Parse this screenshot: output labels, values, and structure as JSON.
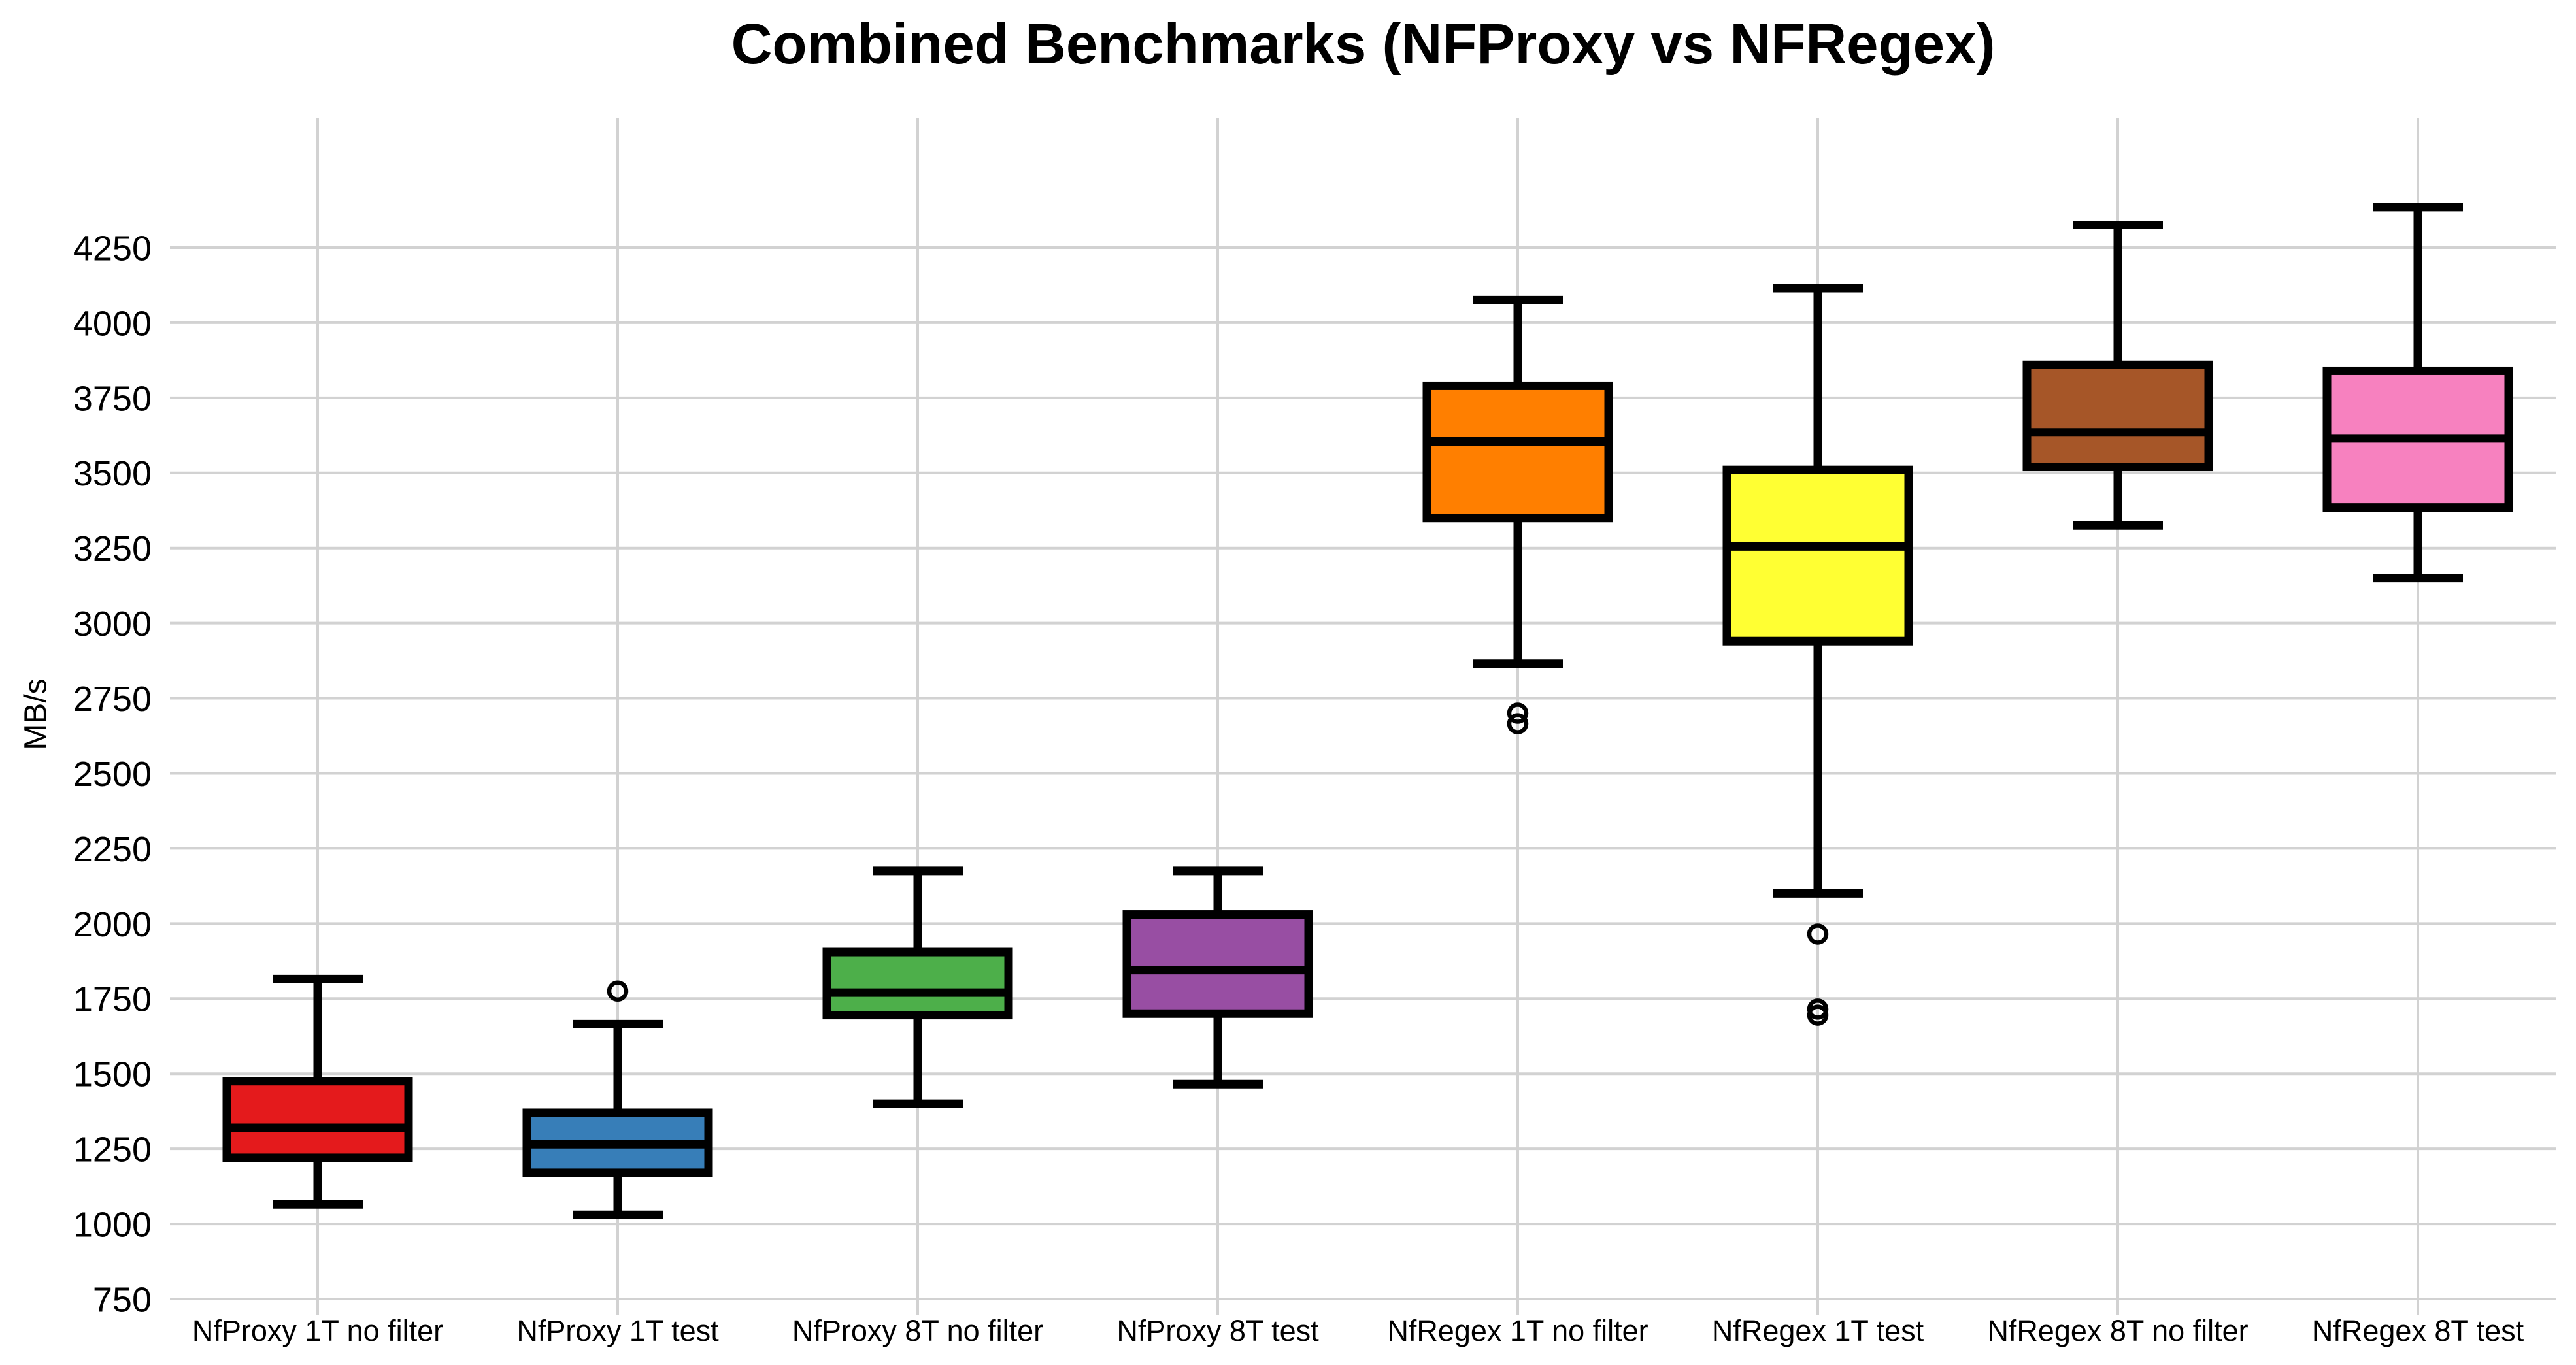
{
  "page": {
    "title": "Combined Benchmarks (NFProxy vs NFRegex)"
  },
  "chart_data": {
    "type": "box",
    "title": "Combined Benchmarks (NFProxy vs NFRegex)",
    "xlabel": "",
    "ylabel": "MB/s",
    "y_ticks": [
      750,
      1000,
      1250,
      1500,
      1750,
      2000,
      2250,
      2500,
      2750,
      3000,
      3250,
      3500,
      3750,
      4000,
      4250
    ],
    "ylim": [
      750,
      4450
    ],
    "grid": true,
    "gridline_color": "#d2d2d2",
    "box_edge_color": "#000000",
    "background_color": "#ffffff",
    "legend": "none",
    "categories": [
      "NfProxy 1T no filter",
      "NfProxy 1T test",
      "NfProxy 8T no filter",
      "NfProxy 8T test",
      "NfRegex 1T no filter",
      "NfRegex 1T test",
      "NfRegex 8T no filter",
      "NfRegex 8T test"
    ],
    "series": [
      {
        "label": "NfProxy 1T no filter",
        "color": "#e41a1c",
        "whisker_low": 1065,
        "q1": 1220,
        "median": 1320,
        "q3": 1475,
        "whisker_high": 1815,
        "outliers": []
      },
      {
        "label": "NfProxy 1T test",
        "color": "#377eb8",
        "whisker_low": 1030,
        "q1": 1170,
        "median": 1265,
        "q3": 1370,
        "whisker_high": 1665,
        "outliers": [
          1775
        ]
      },
      {
        "label": "NfProxy 8T no filter",
        "color": "#4daf4a",
        "whisker_low": 1400,
        "q1": 1695,
        "median": 1770,
        "q3": 1905,
        "whisker_high": 2175,
        "outliers": []
      },
      {
        "label": "NfProxy 8T test",
        "color": "#984ea3",
        "whisker_low": 1465,
        "q1": 1700,
        "median": 1845,
        "q3": 2030,
        "whisker_high": 2175,
        "outliers": []
      },
      {
        "label": "NfRegex 1T no filter",
        "color": "#ff7f00",
        "whisker_low": 2865,
        "q1": 3350,
        "median": 3605,
        "q3": 3790,
        "whisker_high": 4075,
        "outliers": [
          2700,
          2665
        ]
      },
      {
        "label": "NfRegex 1T test",
        "color": "#ffff33",
        "whisker_low": 2100,
        "q1": 2940,
        "median": 3255,
        "q3": 3510,
        "whisker_high": 4115,
        "outliers": [
          1965,
          1715,
          1695
        ]
      },
      {
        "label": "NfRegex 8T no filter",
        "color": "#a65628",
        "whisker_low": 3325,
        "q1": 3520,
        "median": 3635,
        "q3": 3860,
        "whisker_high": 4325,
        "outliers": []
      },
      {
        "label": "NfRegex 8T test",
        "color": "#f781bf",
        "whisker_low": 3150,
        "q1": 3385,
        "median": 3615,
        "q3": 3840,
        "whisker_high": 4385,
        "outliers": []
      }
    ]
  }
}
